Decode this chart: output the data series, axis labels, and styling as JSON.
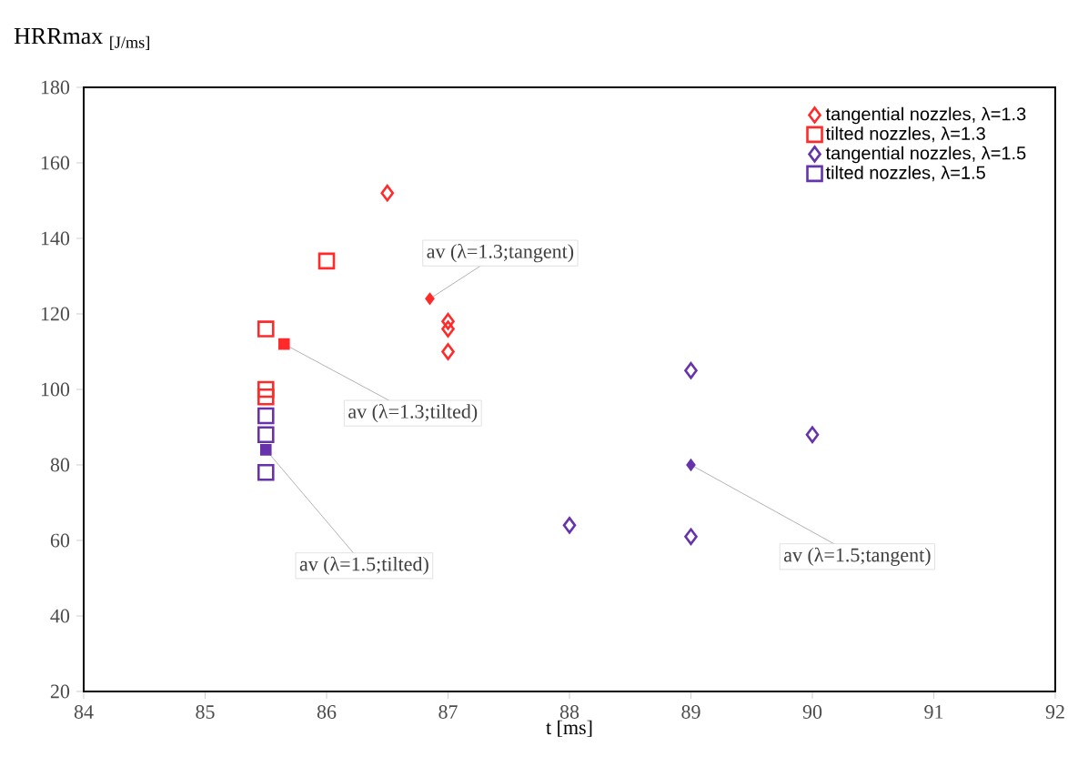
{
  "chart_data": {
    "type": "scatter",
    "xlabel": "t [ms]",
    "ylabel": "HRRmax $_{[J/ms]}$",
    "xlim": [
      84,
      92
    ],
    "xticks": [
      84,
      85,
      86,
      87,
      88,
      89,
      90,
      91,
      92
    ],
    "ylim": [
      20,
      180
    ],
    "yticks": [
      20,
      40,
      60,
      80,
      100,
      120,
      140,
      160,
      180
    ],
    "grid": false,
    "legend": "top right",
    "series": [
      {
        "name": "tangential nozzles, λ=1.3",
        "color": "#ff2a2a",
        "marker": "diamond",
        "x": [
          86.5,
          87,
          87,
          87
        ],
        "values": [
          152,
          118,
          116,
          110
        ]
      },
      {
        "name": "tilted nozzles, λ=1.3",
        "color": "#ff2a2a",
        "marker": "square",
        "x": [
          86,
          85.5,
          85.5,
          85.5
        ],
        "values": [
          134,
          116,
          100,
          98
        ]
      },
      {
        "name": "tangential nozzles, λ=1.5",
        "color": "#6633aa",
        "marker": "diamond",
        "x": [
          88,
          89,
          89,
          90
        ],
        "values": [
          64,
          61,
          105,
          88
        ]
      },
      {
        "name": "tilted nozzles, λ=1.5",
        "color": "#6633aa",
        "marker": "square",
        "x": [
          85.5,
          85.5,
          85.5
        ],
        "values": [
          93,
          88,
          78
        ]
      },
      {
        "color": "#ff2a2a",
        "marker": "diamond",
        "x": [
          86.85
        ],
        "values": [
          124
        ]
      },
      {
        "color": "#ff2a2a",
        "marker": "square",
        "x": [
          85.65
        ],
        "values": [
          112
        ]
      },
      {
        "color": "#6633aa",
        "marker": "diamond",
        "x": [
          89
        ],
        "values": [
          80
        ]
      },
      {
        "color": "#6633aa",
        "marker": "square",
        "x": [
          85.5
        ],
        "values": [
          84
        ]
      }
    ],
    "annotations": [
      {
        "text": "av (λ=1.3;tangent)",
        "x": 86.85,
        "y": 124
      },
      {
        "text": "av (λ=1.3;tilted)",
        "x": 85.65,
        "y": 112
      },
      {
        "text": "av (λ=1.5;tilted)",
        "x": 85.5,
        "y": 84
      },
      {
        "text": "av (λ=1.5;tangent)",
        "x": 89,
        "y": 80
      }
    ]
  }
}
